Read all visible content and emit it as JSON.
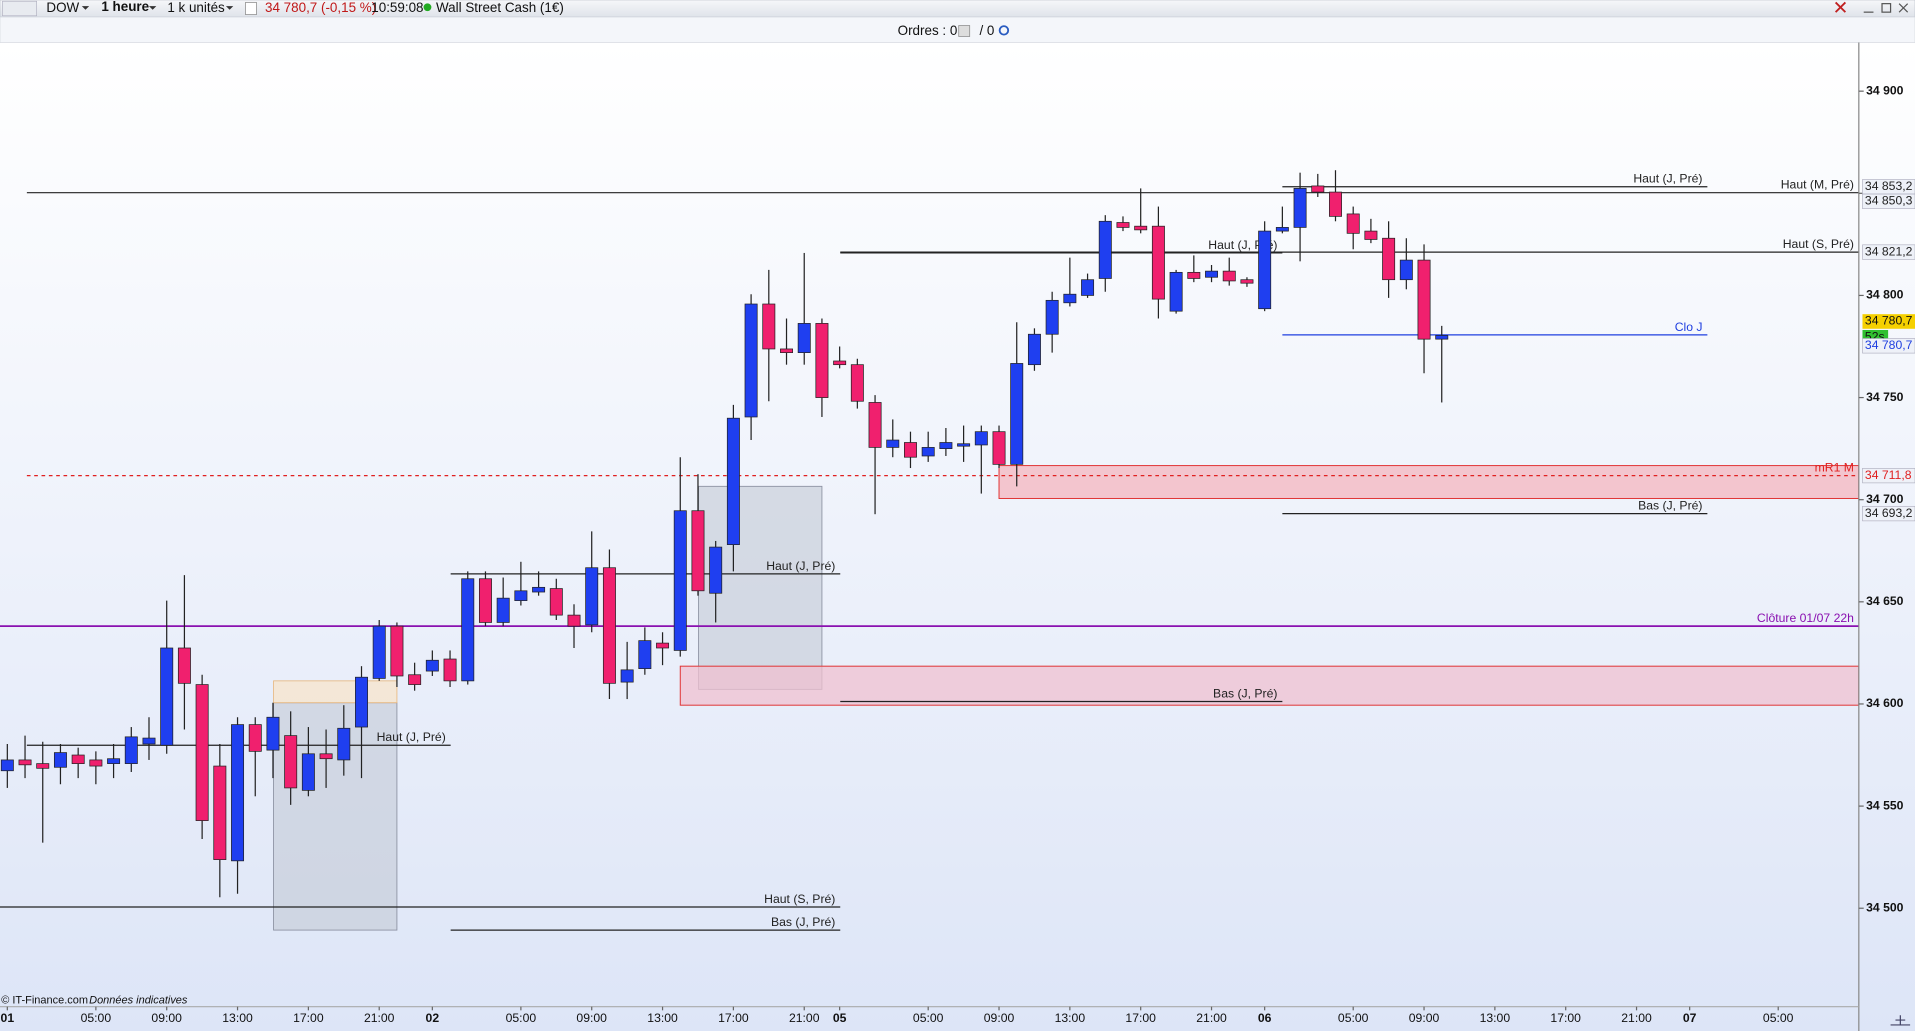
{
  "toolbar": {
    "instrument": "DOW",
    "timeframe": "1 heure",
    "size": "1 k unités",
    "price": "34 780,7 (-0,15 %)",
    "time": "10:59:08",
    "market": "Wall Street Cash (1€)"
  },
  "orders": {
    "label": "Ordres : 0",
    "pending": "/ 0"
  },
  "footer": {
    "source": "© IT-Finance.com",
    "note": "Données indicatives"
  },
  "chart_data": {
    "type": "candlestick",
    "up_color": "#1f3ff0",
    "down_color": "#f0206e",
    "ylim": [
      34451.8,
      34923.8
    ],
    "yticks": [
      {
        "value": 34900,
        "label": "34 900"
      },
      {
        "value": 34850,
        "label": "34 850"
      },
      {
        "value": 34800,
        "label": "34 800"
      },
      {
        "value": 34750,
        "label": "34 750"
      },
      {
        "value": 34700,
        "label": "34 700"
      },
      {
        "value": 34650,
        "label": "34 650"
      },
      {
        "value": 34600,
        "label": "34 600"
      },
      {
        "value": 34550,
        "label": "34 550"
      },
      {
        "value": 34500,
        "label": "34 500"
      }
    ],
    "categories": [
      "01",
      null,
      null,
      null,
      null,
      "05:00",
      null,
      null,
      null,
      "09:00",
      null,
      null,
      null,
      "13:00",
      null,
      null,
      null,
      "17:00",
      null,
      null,
      null,
      "21:00",
      null,
      null,
      "02",
      null,
      null,
      null,
      null,
      "05:00",
      null,
      null,
      null,
      "09:00",
      null,
      null,
      null,
      "13:00",
      null,
      null,
      null,
      "17:00",
      null,
      null,
      null,
      "21:00",
      null,
      "05",
      null,
      null,
      null,
      null,
      "05:00",
      null,
      null,
      null,
      "09:00",
      null,
      null,
      null,
      "13:00",
      null,
      null,
      null,
      "17:00",
      null,
      null,
      null,
      "21:00",
      null,
      null,
      "06",
      null,
      null,
      null,
      null,
      "05:00",
      null,
      null,
      null,
      "09:00",
      null,
      null,
      null,
      "13:00",
      null,
      null,
      null,
      "17:00",
      null,
      null,
      null,
      "21:00",
      null,
      null,
      "07",
      null,
      null,
      null,
      null,
      "05:00"
    ],
    "open": [
      34567.3,
      34572.6,
      34570.8,
      34569.0,
      34575.0,
      34572.6,
      34570.8,
      34570.8,
      34580.4,
      34579.8,
      34627.4,
      34609.5,
      34569.6,
      34523.2,
      34589.9,
      34577.4,
      34584.5,
      34557.7,
      34575.6,
      34572.6,
      34588.7,
      34612.5,
      34638.1,
      34614.3,
      34616.1,
      34622.0,
      34611.3,
      34661.3,
      34639.9,
      34650.6,
      34654.8,
      34656.5,
      34643.5,
      34638.7,
      34666.7,
      34610.7,
      34617.3,
      34629.8,
      34626.2,
      34694.6,
      34654.2,
      34678.0,
      34740.5,
      34795.8,
      34773.8,
      34772.0,
      34786.3,
      34767.9,
      34766.1,
      34747.6,
      34725.6,
      34728.0,
      34721.4,
      34725.0,
      34726.2,
      34726.8,
      34733.3,
      34717.3,
      34766.1,
      34781.0,
      34796.4,
      34800.0,
      34808.3,
      34835.7,
      34833.9,
      34833.9,
      34792.3,
      34811.3,
      34808.9,
      34811.9,
      34807.7,
      34793.5,
      34831.5,
      34833.3,
      34853.6,
      34850.6,
      34839.9,
      34831.5,
      34828.0,
      34807.7,
      34817.3,
      34778.6,
      null,
      null,
      null,
      null,
      null,
      null,
      null,
      null,
      null,
      null,
      null,
      null,
      null,
      null,
      null,
      null,
      null,
      null,
      null
    ],
    "high": [
      34580.4,
      34584.5,
      34581.5,
      34580.4,
      34578.6,
      34576.8,
      34580.4,
      34588.7,
      34593.5,
      34650.6,
      34663.1,
      34614.3,
      34580.4,
      34593.5,
      34593.5,
      34600.6,
      34596.4,
      34588.7,
      34587.5,
      34599.4,
      34618.5,
      34641.1,
      34639.9,
      34620.2,
      34626.2,
      34626.2,
      34664.9,
      34664.9,
      34661.9,
      34669.6,
      34664.9,
      34661.3,
      34648.8,
      34684.5,
      34675.6,
      34630.4,
      34637.5,
      34635.1,
      34720.8,
      34712.5,
      34679.8,
      34746.4,
      34800.6,
      34812.5,
      34788.7,
      34820.8,
      34788.7,
      34775.0,
      34769.0,
      34751.2,
      34739.3,
      34733.3,
      34733.3,
      34735.1,
      34736.3,
      34736.3,
      34736.3,
      34786.9,
      34783.9,
      34801.8,
      34818.5,
      34810.7,
      34839.3,
      34838.7,
      34852.4,
      34843.5,
      34812.5,
      34819.6,
      34814.9,
      34818.5,
      34808.9,
      34836.3,
      34843.5,
      34860.1,
      34859.5,
      34861.3,
      34843.5,
      34837.5,
      34836.3,
      34828.0,
      34825.0,
      34785.1,
      null,
      null,
      null,
      null,
      null,
      null,
      null,
      null,
      null,
      null,
      null,
      null,
      null,
      null,
      null,
      null,
      null,
      null,
      null
    ],
    "low": [
      34558.9,
      34563.7,
      34532.1,
      34560.7,
      34563.7,
      34560.7,
      34563.7,
      34566.7,
      34572.6,
      34575.6,
      34587.5,
      34533.9,
      34505.4,
      34507.1,
      34554.8,
      34563.7,
      34550.6,
      34554.8,
      34558.9,
      34564.9,
      34563.7,
      34611.3,
      34608.3,
      34606.5,
      34613.7,
      34608.3,
      34609.5,
      34638.1,
      34638.1,
      34648.2,
      34653.0,
      34641.1,
      34627.4,
      34635.1,
      34602.4,
      34602.4,
      34614.3,
      34619.0,
      34623.2,
      34653.0,
      34639.9,
      34664.9,
      34729.2,
      34748.2,
      34766.1,
      34766.1,
      34740.5,
      34764.3,
      34744.6,
      34692.9,
      34720.8,
      34715.5,
      34718.5,
      34721.4,
      34718.5,
      34703.0,
      34715.5,
      34706.5,
      34763.1,
      34772.0,
      34794.6,
      34798.8,
      34801.8,
      34831.5,
      34830.4,
      34788.7,
      34791.1,
      34806.5,
      34806.5,
      34804.8,
      34804.2,
      34792.3,
      34830.4,
      34816.7,
      34848.2,
      34836.3,
      34822.6,
      34825.6,
      34798.8,
      34803.0,
      34761.9,
      34747.6,
      null,
      null,
      null,
      null,
      null,
      null,
      null,
      null,
      null,
      null,
      null,
      null,
      null,
      null,
      null,
      null,
      null,
      null,
      null
    ],
    "close": [
      34572.6,
      34570.2,
      34568.5,
      34576.2,
      34570.8,
      34569.6,
      34573.2,
      34583.9,
      34583.3,
      34627.4,
      34610.1,
      34542.9,
      34523.8,
      34589.9,
      34576.8,
      34593.5,
      34558.9,
      34575.6,
      34573.2,
      34588.1,
      34613.1,
      34638.1,
      34613.7,
      34609.5,
      34621.4,
      34611.3,
      34661.3,
      34639.9,
      34651.8,
      34655.4,
      34657.1,
      34643.5,
      34638.1,
      34666.7,
      34610.1,
      34616.7,
      34631.0,
      34627.4,
      34694.6,
      34655.4,
      34676.8,
      34739.9,
      34795.8,
      34773.8,
      34772.0,
      34786.3,
      34750.0,
      34766.1,
      34748.2,
      34725.6,
      34729.2,
      34720.8,
      34725.6,
      34728.0,
      34727.4,
      34733.3,
      34717.3,
      34766.7,
      34781.0,
      34797.6,
      34800.6,
      34807.7,
      34836.3,
      34833.3,
      34832.1,
      34798.2,
      34811.3,
      34808.3,
      34811.9,
      34807.1,
      34806.0,
      34831.5,
      34833.3,
      34852.4,
      34850.6,
      34838.7,
      34830.4,
      34827.4,
      34807.7,
      34817.3,
      34778.6,
      34780.4,
      null,
      null,
      null,
      null,
      null,
      null,
      null,
      null,
      null,
      null,
      null,
      null,
      null,
      null,
      null,
      null,
      null,
      null,
      null
    ],
    "levels": [
      {
        "name": "Haut (J, Pré)",
        "value": 34853.2,
        "value_label": "34 853,2",
        "color": "#222222"
      },
      {
        "name": "Haut (M, Pré)",
        "value": 34850.3,
        "value_label": "34 850,3",
        "color": "#222222"
      },
      {
        "name": "Haut (S, Pré)",
        "value": 34821.2,
        "value_label": "34 821,2",
        "color": "#222222"
      },
      {
        "name": "Haut (J, Pré)",
        "value": 34820.8,
        "color": "#222222"
      },
      {
        "name": "Clo J",
        "value": 34780.7,
        "value_label": "34 780,7",
        "color": "#1f3fe0"
      },
      {
        "name": "mR1 M",
        "value": 34711.8,
        "value_label": "34 711,8",
        "color": "#e02020",
        "dashed": true
      },
      {
        "name": "Bas (J, Pré)",
        "value": 34693.2,
        "value_label": "34 693,2",
        "color": "#222222"
      },
      {
        "name": "Haut (J, Pré)",
        "value": 34663.7,
        "color": "#222222"
      },
      {
        "name": "Clôture 01/07 22h",
        "value": 34638.1,
        "color": "#8a10b0"
      },
      {
        "name": "Bas (J, Pré)",
        "value": 34601.2,
        "color": "#222222"
      },
      {
        "name": "Haut (J, Pré)",
        "value": 34579.8,
        "color": "#222222"
      },
      {
        "name": "Haut (S, Pré)",
        "value": 34500.6,
        "color": "#222222"
      },
      {
        "name": "Bas (J, Pré)",
        "value": 34489.3,
        "color": "#222222"
      }
    ],
    "zones": [
      {
        "low": 34700.6,
        "high": 34716.7,
        "color": "#f4b6bf"
      },
      {
        "low": 34599.4,
        "high": 34618.5,
        "color": "#efc0d0"
      }
    ],
    "last_price": {
      "value": 34780.7,
      "label": "34 780,7"
    },
    "countdown": "52s"
  }
}
